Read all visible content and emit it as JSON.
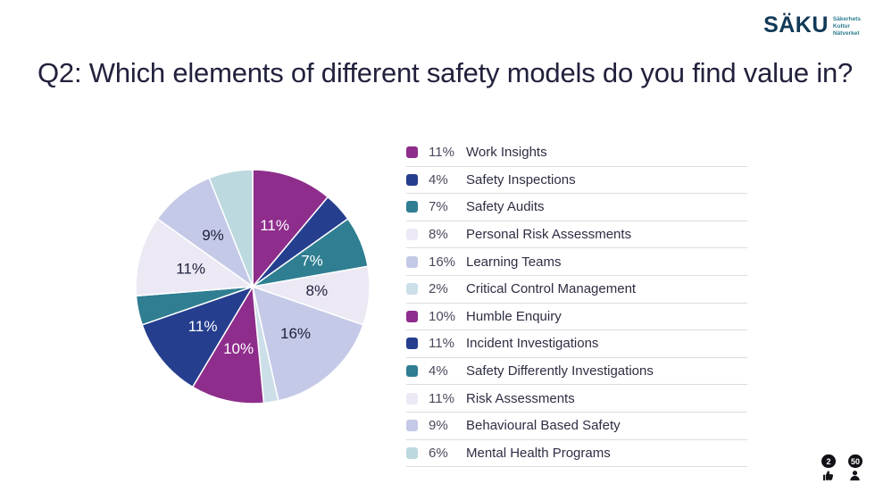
{
  "logo": {
    "name": "SÄKU",
    "tagline_lines": [
      "Säkerhets",
      "Kultur",
      "Nätverket"
    ]
  },
  "title": "Q2: Which elements of different safety models do you find value in?",
  "chart_data": {
    "type": "pie",
    "title": "Q2: Which elements of different safety models do you find value in?",
    "legend_position": "right",
    "start_angle_deg": -90,
    "direction": "clockwise",
    "label_min_pct": 7,
    "slices": [
      {
        "label": "Work Insights",
        "pct_label": "11%",
        "value": 11,
        "color": "#8e2d8b",
        "label_color": "#ffffff"
      },
      {
        "label": "Safety Inspections",
        "pct_label": "4%",
        "value": 4,
        "color": "#253e8e",
        "label_color": "#ffffff"
      },
      {
        "label": "Safety Audits",
        "pct_label": "7%",
        "value": 7,
        "color": "#2f7e92",
        "label_color": "#ffffff"
      },
      {
        "label": "Personal Risk Assessments",
        "pct_label": "8%",
        "value": 8,
        "color": "#ece9f5",
        "label_color": "#21213d"
      },
      {
        "label": "Learning Teams",
        "pct_label": "16%",
        "value": 16,
        "color": "#c4c9e7",
        "label_color": "#21213d"
      },
      {
        "label": "Critical Control Management",
        "pct_label": "2%",
        "value": 2,
        "color": "#ccdfe8",
        "label_color": "#21213d"
      },
      {
        "label": "Humble Enquiry",
        "pct_label": "10%",
        "value": 10,
        "color": "#8e2d8b",
        "label_color": "#ffffff"
      },
      {
        "label": "Incident Investigations",
        "pct_label": "11%",
        "value": 11,
        "color": "#253e8e",
        "label_color": "#ffffff"
      },
      {
        "label": "Safety Differently Investigations",
        "pct_label": "4%",
        "value": 4,
        "color": "#2f7e92",
        "label_color": "#ffffff"
      },
      {
        "label": "Risk Assessments",
        "pct_label": "11%",
        "value": 11,
        "color": "#ece9f5",
        "label_color": "#21213d"
      },
      {
        "label": "Behavioural Based Safety",
        "pct_label": "9%",
        "value": 9,
        "color": "#c4c9e7",
        "label_color": "#21213d"
      },
      {
        "label": "Mental Health Programs",
        "pct_label": "6%",
        "value": 6,
        "color": "#bcd9df",
        "label_color": "#21213d"
      }
    ]
  },
  "badges": {
    "like_count": "2",
    "like_icon": "thumbs-up-icon",
    "attendee_count": "50",
    "attendee_icon": "person-icon"
  }
}
